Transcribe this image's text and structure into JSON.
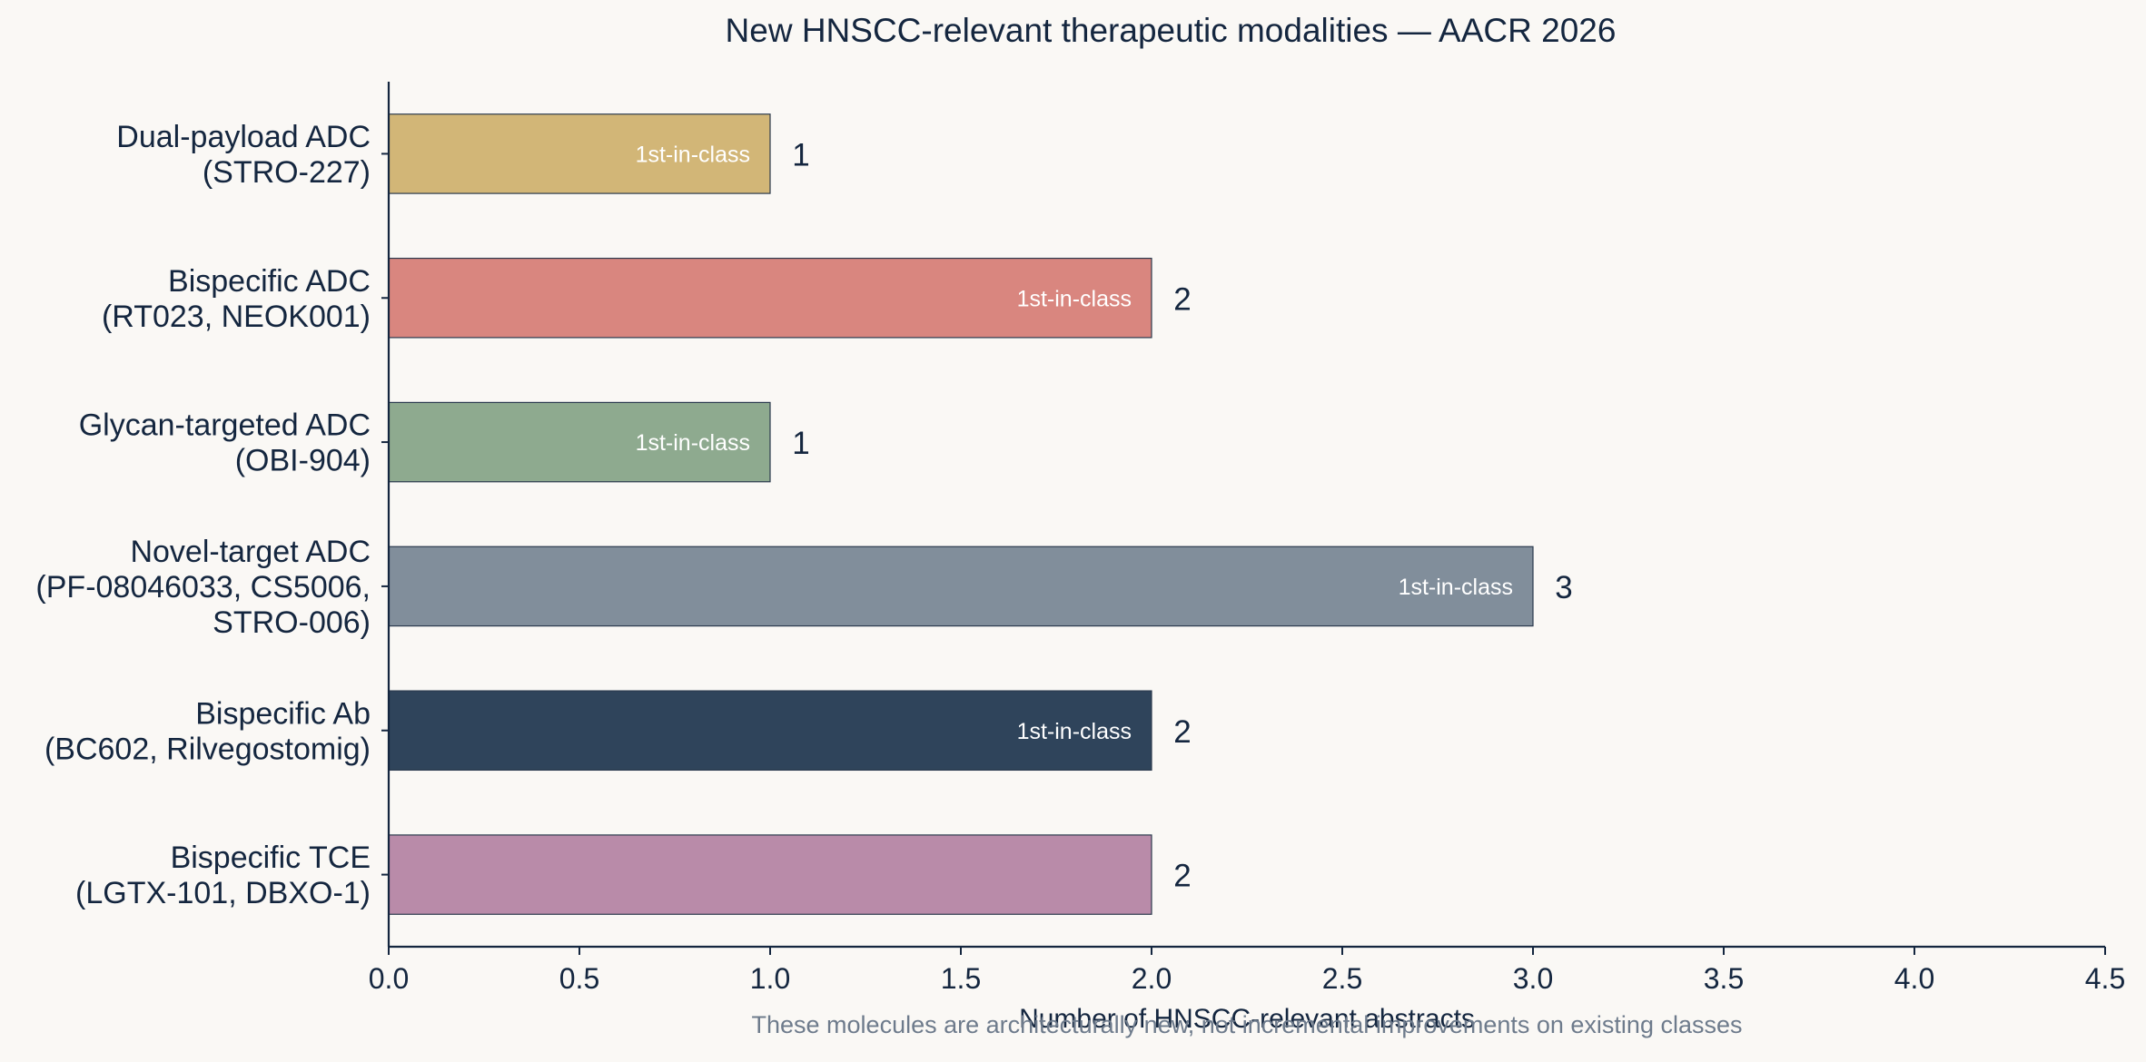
{
  "chart_data": {
    "type": "bar",
    "orientation": "horizontal",
    "title": "New HNSCC-relevant therapeutic modalities — AACR 2026",
    "xlabel": "Number of HNSCC-relevant abstracts",
    "ylabel": "",
    "caption": "These molecules are architecturally new, not incremental improvements on existing classes",
    "xlim": [
      0,
      4.5
    ],
    "xticks": [
      "0.0",
      "0.5",
      "1.0",
      "1.5",
      "2.0",
      "2.5",
      "3.0",
      "3.5",
      "4.0",
      "4.5"
    ],
    "grid": false,
    "categories": [
      {
        "lines": [
          "Dual-payload ADC",
          "(STRO-227)"
        ],
        "value": 1,
        "value_label": "1",
        "badge": "1st-in-class",
        "color": "#d2b677"
      },
      {
        "lines": [
          "Bispecific ADC",
          "(RT023, NEOK001)"
        ],
        "value": 2,
        "value_label": "2",
        "badge": "1st-in-class",
        "color": "#d9867f"
      },
      {
        "lines": [
          "Glycan-targeted ADC",
          "(OBI-904)"
        ],
        "value": 1,
        "value_label": "1",
        "badge": "1st-in-class",
        "color": "#8eaa8f"
      },
      {
        "lines": [
          "Novel-target ADC",
          "(PF-08046033, CS5006,",
          "STRO-006)"
        ],
        "value": 3,
        "value_label": "3",
        "badge": "1st-in-class",
        "color": "#818e9b"
      },
      {
        "lines": [
          "Bispecific Ab",
          "(BC602, Rilvegostomig)"
        ],
        "value": 2,
        "value_label": "2",
        "badge": "1st-in-class",
        "color": "#2f445b"
      },
      {
        "lines": [
          "Bispecific TCE",
          "(LGTX-101, DBXO-1)"
        ],
        "value": 2,
        "value_label": "2",
        "badge": "",
        "color": "#b98ba9"
      }
    ],
    "colors": {
      "axis": "#14263f",
      "bar_edge": "#2b3a4e",
      "background": "#faf8f5"
    }
  }
}
